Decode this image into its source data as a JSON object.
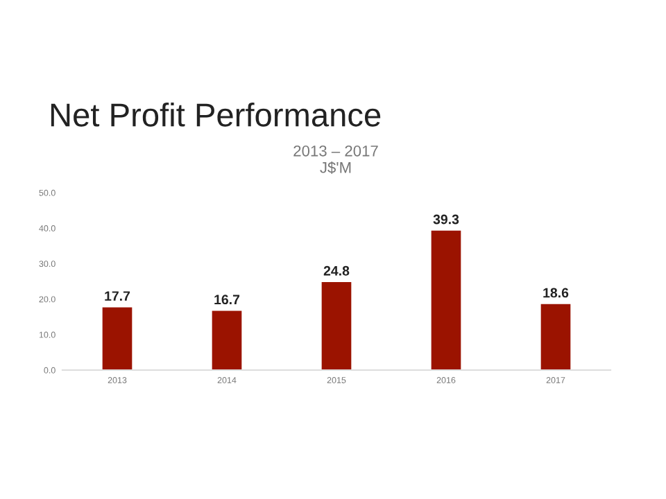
{
  "chart_data": {
    "type": "bar",
    "title": "Net Profit Performance",
    "subtitle": "2013 – 2017\nJ$'M",
    "categories": [
      "2013",
      "2014",
      "2015",
      "2016",
      "2017"
    ],
    "values": [
      17.7,
      16.7,
      24.8,
      39.3,
      18.6
    ],
    "color": "#9b1300",
    "ylim": [
      0,
      50
    ],
    "yticks": [
      {
        "value": 0,
        "label": "0.0"
      },
      {
        "value": 10,
        "label": "10.0"
      },
      {
        "value": 20,
        "label": "20.0"
      },
      {
        "value": 30,
        "label": "30.0"
      },
      {
        "value": 40,
        "label": "40.0"
      },
      {
        "value": 50,
        "label": "50.0"
      }
    ],
    "data_labels": true,
    "grid": false
  }
}
